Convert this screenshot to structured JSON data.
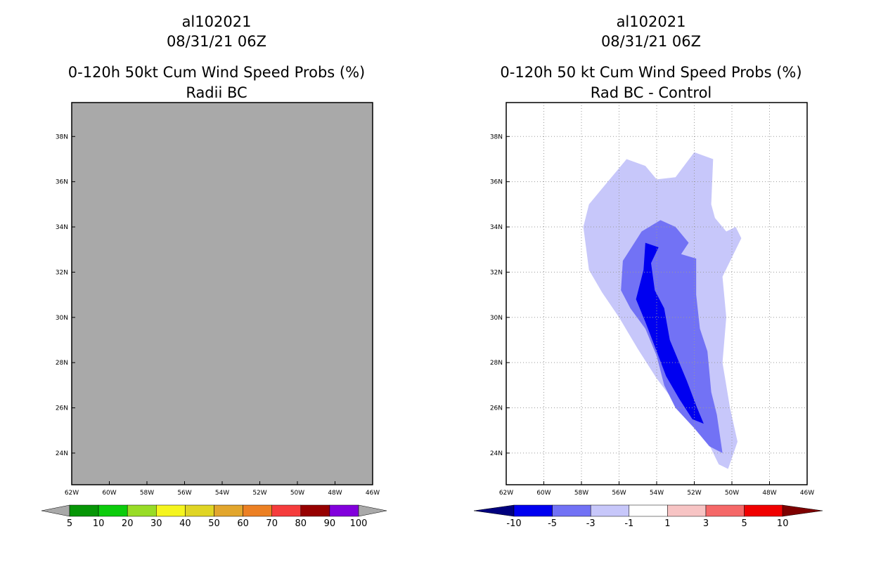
{
  "left": {
    "title_line1": "al102021",
    "title_line2": "08/31/21 06Z",
    "title_line3": "0-120h 50kt Cum Wind Speed Probs (%)",
    "title_line4": "Radii BC",
    "fill_color": "#a9a9a9"
  },
  "right": {
    "title_line1": "al102021",
    "title_line2": "08/31/21 06Z",
    "title_line3": "0-120h 50 kt Cum Wind Speed Probs (%)",
    "title_line4": "Rad BC - Control"
  },
  "chart_data": [
    {
      "type": "heatmap",
      "title": "0-120h 50kt Cum Wind Speed Probs (%) - Radii BC",
      "x_tick_labels": [
        "62W",
        "60W",
        "58W",
        "56W",
        "54W",
        "52W",
        "50W",
        "48W",
        "46W"
      ],
      "y_tick_labels": [
        "38N",
        "36N",
        "34N",
        "32N",
        "30N",
        "28N",
        "26N",
        "24N"
      ],
      "x_range_deg_lon": [
        -62,
        -46
      ],
      "y_range_deg_lat": [
        22.6,
        39.5
      ],
      "grid": false,
      "field": "uniform missing / no data (gray)",
      "colorbar": {
        "labels": [
          "5",
          "10",
          "20",
          "30",
          "40",
          "50",
          "60",
          "70",
          "80",
          "90",
          "100"
        ],
        "colors": [
          "#069606",
          "#0ccc0c",
          "#98dc26",
          "#f5f51e",
          "#e0d524",
          "#e2a62d",
          "#ec8023",
          "#f53c3c",
          "#960000",
          "#8200dc"
        ],
        "end_left_color": "#a9a9a9",
        "end_right_color": "#a9a9a9"
      }
    },
    {
      "type": "heatmap",
      "title": "0-120h 50 kt Cum Wind Speed Probs (%) - Rad BC - Control",
      "x_tick_labels": [
        "62W",
        "60W",
        "58W",
        "56W",
        "54W",
        "52W",
        "50W",
        "48W",
        "46W"
      ],
      "y_tick_labels": [
        "38N",
        "36N",
        "34N",
        "32N",
        "30N",
        "28N",
        "26N",
        "24N"
      ],
      "x_range_deg_lon": [
        -62,
        -46
      ],
      "y_range_deg_lat": [
        22.6,
        39.5
      ],
      "grid": true,
      "contour_levels": [
        {
          "range": "-1 to -3",
          "color": "#c7c7fa",
          "polygon_lonlat": [
            [
              -55.6,
              37
            ],
            [
              -54.6,
              36.7
            ],
            [
              -54,
              36.1
            ],
            [
              -53,
              36.2
            ],
            [
              -52,
              37.3
            ],
            [
              -51,
              37
            ],
            [
              -51.1,
              35
            ],
            [
              -50.9,
              34.4
            ],
            [
              -50.3,
              33.8
            ],
            [
              -49.8,
              34
            ],
            [
              -49.5,
              33.5
            ],
            [
              -50.5,
              31.8
            ],
            [
              -50.3,
              30
            ],
            [
              -50.5,
              28
            ],
            [
              -50.1,
              26
            ],
            [
              -49.7,
              24.5
            ],
            [
              -50.2,
              23.3
            ],
            [
              -50.7,
              23.5
            ],
            [
              -51.4,
              24.7
            ],
            [
              -52,
              25.4
            ],
            [
              -53,
              26.2
            ],
            [
              -54,
              27.3
            ],
            [
              -55,
              28.6
            ],
            [
              -56,
              30
            ],
            [
              -56.9,
              31.1
            ],
            [
              -57.6,
              32.1
            ],
            [
              -57.9,
              34
            ],
            [
              -57.6,
              35
            ],
            [
              -56.4,
              36.2
            ]
          ]
        },
        {
          "range": "-3 to -5",
          "color": "#7272f5",
          "polygon_lonlat": [
            [
              -54.8,
              33.8
            ],
            [
              -53.8,
              34.3
            ],
            [
              -53,
              34
            ],
            [
              -52.3,
              33.3
            ],
            [
              -52.7,
              32.8
            ],
            [
              -51.9,
              32.6
            ],
            [
              -51.9,
              31
            ],
            [
              -51.7,
              29.5
            ],
            [
              -51.3,
              28.5
            ],
            [
              -51.1,
              26.7
            ],
            [
              -50.8,
              25.7
            ],
            [
              -50.5,
              24
            ],
            [
              -51.2,
              24.3
            ],
            [
              -52,
              25.1
            ],
            [
              -53,
              26
            ],
            [
              -53.6,
              27
            ],
            [
              -54,
              28.3
            ],
            [
              -54.6,
              29.5
            ],
            [
              -55.4,
              30.4
            ],
            [
              -55.9,
              31.2
            ],
            [
              -55.8,
              32.5
            ]
          ]
        },
        {
          "range": "< -5",
          "color": "#0000f0",
          "polygon_lonlat": [
            [
              -54.6,
              33.3
            ],
            [
              -53.9,
              33.1
            ],
            [
              -54.3,
              32.4
            ],
            [
              -54.1,
              31.2
            ],
            [
              -53.6,
              30.4
            ],
            [
              -53.3,
              29
            ],
            [
              -52.9,
              28.2
            ],
            [
              -52.4,
              27.2
            ],
            [
              -51.9,
              26.1
            ],
            [
              -51.5,
              25.3
            ],
            [
              -52.1,
              25.5
            ],
            [
              -52.8,
              26.4
            ],
            [
              -53.5,
              27.4
            ],
            [
              -54,
              28.5
            ],
            [
              -54.6,
              29.8
            ],
            [
              -55.1,
              30.8
            ],
            [
              -54.7,
              32.1
            ]
          ]
        }
      ],
      "colorbar": {
        "labels": [
          "-10",
          "-5",
          "-3",
          "-1",
          "1",
          "3",
          "5",
          "10"
        ],
        "colors": [
          "#0000f0",
          "#7272f5",
          "#c7c7fa",
          "#ffffff",
          "#f7c4c4",
          "#f56868",
          "#f00000"
        ],
        "end_left_color": "#00007e",
        "end_right_color": "#7e0000"
      }
    }
  ]
}
